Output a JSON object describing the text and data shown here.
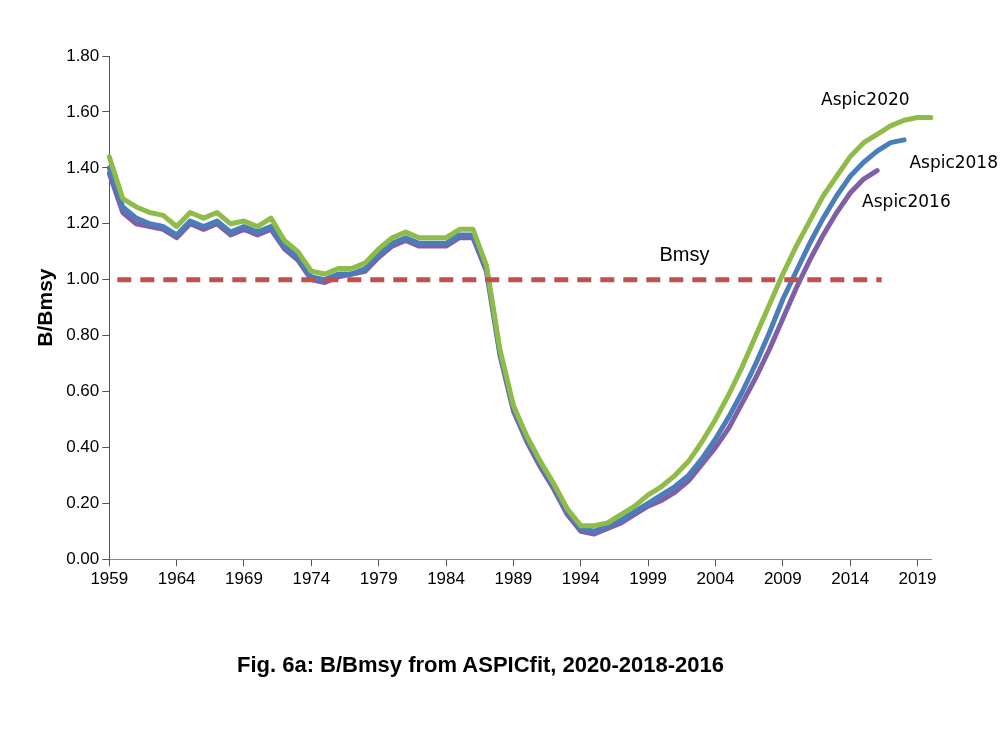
{
  "chart_data": {
    "type": "line",
    "title": "Fig. 6a: B/Bmsy from ASPICfit, 2020-2018-2016",
    "ylabel": "B/Bmsy",
    "categories": [
      "1959",
      null,
      null,
      null,
      null,
      "1964",
      null,
      null,
      null,
      null,
      "1969",
      null,
      null,
      null,
      null,
      "1974",
      null,
      null,
      null,
      null,
      "1979",
      null,
      null,
      null,
      null,
      "1984",
      null,
      null,
      null,
      null,
      "1989",
      null,
      null,
      null,
      null,
      "1994",
      null,
      null,
      null,
      null,
      "1999",
      null,
      null,
      null,
      null,
      "2004",
      null,
      null,
      null,
      null,
      "2009",
      null,
      null,
      null,
      null,
      "2014",
      null,
      null,
      null,
      null,
      "2019",
      null
    ],
    "series": [
      {
        "name": "Aspic2020",
        "color": "#8fbc48",
        "values": [
          1.44,
          1.29,
          1.26,
          1.24,
          1.23,
          1.19,
          1.24,
          1.22,
          1.24,
          1.2,
          1.21,
          1.19,
          1.22,
          1.14,
          1.1,
          1.03,
          1.02,
          1.04,
          1.04,
          1.06,
          1.11,
          1.15,
          1.17,
          1.15,
          1.15,
          1.15,
          1.18,
          1.18,
          1.05,
          0.75,
          0.55,
          0.44,
          0.35,
          0.27,
          0.18,
          0.12,
          0.12,
          0.13,
          0.16,
          0.19,
          0.23,
          0.26,
          0.3,
          0.35,
          0.42,
          0.5,
          0.59,
          0.69,
          0.8,
          0.91,
          1.02,
          1.12,
          1.21,
          1.3,
          1.37,
          1.44,
          1.49,
          1.52,
          1.55,
          1.57,
          1.58,
          1.58
        ]
      },
      {
        "name": "Aspic2018",
        "color": "#4a7ebb",
        "values": [
          1.4,
          1.26,
          1.22,
          1.2,
          1.19,
          1.16,
          1.21,
          1.19,
          1.21,
          1.17,
          1.19,
          1.17,
          1.19,
          1.12,
          1.08,
          1.01,
          1.0,
          1.02,
          1.02,
          1.04,
          1.09,
          1.13,
          1.15,
          1.13,
          1.13,
          1.13,
          1.16,
          1.16,
          1.04,
          0.74,
          0.54,
          0.43,
          0.34,
          0.26,
          0.17,
          0.11,
          0.1,
          0.12,
          0.14,
          0.17,
          0.2,
          0.23,
          0.26,
          0.3,
          0.36,
          0.43,
          0.51,
          0.6,
          0.7,
          0.81,
          0.93,
          1.03,
          1.13,
          1.22,
          1.3,
          1.37,
          1.42,
          1.46,
          1.49,
          1.5,
          null,
          null
        ]
      },
      {
        "name": "Aspic2016",
        "color": "#7f60a8",
        "values": [
          1.38,
          1.24,
          1.2,
          1.19,
          1.18,
          1.15,
          1.2,
          1.18,
          1.2,
          1.16,
          1.18,
          1.16,
          1.18,
          1.11,
          1.07,
          1.0,
          0.99,
          1.01,
          1.02,
          1.03,
          1.08,
          1.12,
          1.14,
          1.12,
          1.12,
          1.12,
          1.15,
          1.15,
          1.03,
          0.73,
          0.53,
          0.42,
          0.33,
          0.25,
          0.16,
          0.1,
          0.09,
          0.11,
          0.13,
          0.16,
          0.19,
          0.21,
          0.24,
          0.28,
          0.34,
          0.4,
          0.47,
          0.56,
          0.65,
          0.75,
          0.86,
          0.97,
          1.07,
          1.16,
          1.24,
          1.31,
          1.36,
          1.39,
          null,
          null,
          null,
          null
        ]
      }
    ],
    "ylim": [
      0,
      1.8
    ],
    "yticks": [
      {
        "value": 0,
        "label": "0.00"
      },
      {
        "value": 0.2,
        "label": "0.20"
      },
      {
        "value": 0.4,
        "label": "0.40"
      },
      {
        "value": 0.6,
        "label": "0.60"
      },
      {
        "value": 0.8,
        "label": "0.80"
      },
      {
        "value": 1,
        "label": "1.00"
      },
      {
        "value": 1.2,
        "label": "1.20"
      },
      {
        "value": 1.4,
        "label": "1.40"
      },
      {
        "value": 1.6,
        "label": "1.60"
      },
      {
        "value": 1.8,
        "label": "1.80"
      }
    ],
    "ref_lines": [
      {
        "axis": "y",
        "value": 1,
        "label": "Bmsy",
        "color": "#c0504d",
        "line_style": "dashed"
      }
    ],
    "grid": false,
    "legend": false,
    "marker": "none",
    "line_style": "solid"
  }
}
